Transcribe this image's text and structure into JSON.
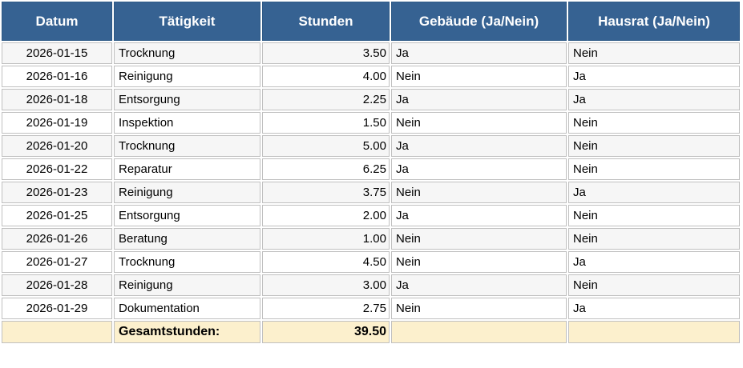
{
  "table": {
    "columns": [
      {
        "label": "Datum",
        "align": "center"
      },
      {
        "label": "Tätigkeit",
        "align": "left"
      },
      {
        "label": "Stunden",
        "align": "right"
      },
      {
        "label": "Gebäude (Ja/Nein)",
        "align": "left"
      },
      {
        "label": "Hausrat (Ja/Nein)",
        "align": "left"
      }
    ],
    "rows": [
      [
        "2026-01-15",
        "Trocknung",
        "3.50",
        "Ja",
        "Nein"
      ],
      [
        "2026-01-16",
        "Reinigung",
        "4.00",
        "Nein",
        "Ja"
      ],
      [
        "2026-01-18",
        "Entsorgung",
        "2.25",
        "Ja",
        "Ja"
      ],
      [
        "2026-01-19",
        "Inspektion",
        "1.50",
        "Nein",
        "Nein"
      ],
      [
        "2026-01-20",
        "Trocknung",
        "5.00",
        "Ja",
        "Nein"
      ],
      [
        "2026-01-22",
        "Reparatur",
        "6.25",
        "Ja",
        "Nein"
      ],
      [
        "2026-01-23",
        "Reinigung",
        "3.75",
        "Nein",
        "Ja"
      ],
      [
        "2026-01-25",
        "Entsorgung",
        "2.00",
        "Ja",
        "Nein"
      ],
      [
        "2026-01-26",
        "Beratung",
        "1.00",
        "Nein",
        "Nein"
      ],
      [
        "2026-01-27",
        "Trocknung",
        "4.50",
        "Nein",
        "Ja"
      ],
      [
        "2026-01-28",
        "Reinigung",
        "3.00",
        "Ja",
        "Nein"
      ],
      [
        "2026-01-29",
        "Dokumentation",
        "2.75",
        "Nein",
        "Ja"
      ]
    ],
    "total_row": {
      "label": "Gesamtstunden:",
      "value": "39.50"
    },
    "colors": {
      "header_bg": "#366292",
      "header_border": "#2d5986",
      "cell_border": "#c0c0c0",
      "stripe_bg": "#f6f6f6",
      "total_bg": "#fcf0cd",
      "header_text": "#ffffff"
    }
  }
}
